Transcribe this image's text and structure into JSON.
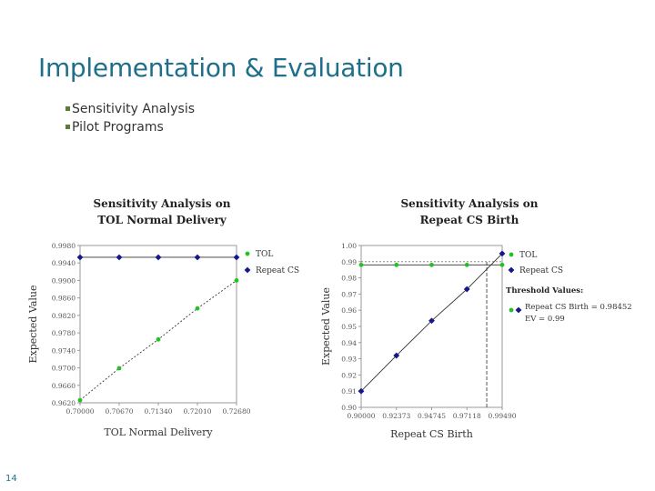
{
  "slide": {
    "title": "Implementation & Evaluation",
    "bullets": [
      "Sensitivity Analysis",
      "Pilot Programs"
    ],
    "page_number": "14"
  },
  "colors": {
    "title": "#1f6f8b",
    "tol": "#22c222",
    "repeat": "#16178c",
    "bullet": "#5a7e3a"
  },
  "chart_data": [
    {
      "type": "line",
      "title": [
        "Sensitivity Analysis on",
        "TOL Normal Delivery"
      ],
      "xlabel": "TOL Normal Delivery",
      "ylabel": "Expected Value",
      "xticks": [
        "0.70000",
        "0.70670",
        "0.71340",
        "0.72010",
        "0.72680"
      ],
      "yticks": [
        "0.9620",
        "0.9660",
        "0.9700",
        "0.9740",
        "0.9780",
        "0.9820",
        "0.9860",
        "0.9900",
        "0.9940",
        "0.9980"
      ],
      "xlim": [
        0.7,
        0.7268
      ],
      "ylim": [
        0.962,
        0.998
      ],
      "grid": false,
      "legend_position": "right",
      "series": [
        {
          "name": "TOL",
          "marker": "circle",
          "color": "#22c222",
          "style": "dashed",
          "x": [
            0.7,
            0.7067,
            0.7134,
            0.7201,
            0.7268
          ],
          "y": [
            0.9626,
            0.9699,
            0.9765,
            0.9836,
            0.99
          ]
        },
        {
          "name": "Repeat CS",
          "marker": "diamond",
          "color": "#16178c",
          "style": "solid",
          "x": [
            0.7,
            0.7067,
            0.7134,
            0.7201,
            0.7268
          ],
          "y": [
            0.9953,
            0.9953,
            0.9953,
            0.9953,
            0.9953
          ]
        }
      ]
    },
    {
      "type": "line",
      "title": [
        "Sensitivity Analysis on",
        "Repeat CS Birth"
      ],
      "xlabel": "Repeat CS Birth",
      "ylabel": "Expected Value",
      "xticks": [
        "0.90000",
        "0.92373",
        "0.94745",
        "0.97118",
        "0.99490"
      ],
      "yticks": [
        "0.90",
        "0.91",
        "0.92",
        "0.93",
        "0.94",
        "0.95",
        "0.96",
        "0.97",
        "0.98",
        "0.99",
        "1.00"
      ],
      "xlim": [
        0.9,
        0.9949
      ],
      "ylim": [
        0.9,
        1.0
      ],
      "grid": false,
      "legend_position": "right",
      "series": [
        {
          "name": "TOL",
          "marker": "circle",
          "color": "#22c222",
          "style": "solid",
          "x": [
            0.9,
            0.92373,
            0.94745,
            0.97118,
            0.9949
          ],
          "y": [
            0.988,
            0.988,
            0.988,
            0.988,
            0.988
          ]
        },
        {
          "name": "Repeat CS",
          "marker": "diamond",
          "color": "#16178c",
          "style": "solid",
          "x": [
            0.9,
            0.92373,
            0.94745,
            0.97118,
            0.9949
          ],
          "y": [
            0.91,
            0.932,
            0.9535,
            0.973,
            0.995
          ]
        }
      ],
      "threshold": {
        "heading": "Threshold Values:",
        "lines": [
          "Repeat CS Birth = 0.98452",
          "EV = 0.99"
        ],
        "x": 0.98452,
        "y": 0.99
      }
    }
  ]
}
